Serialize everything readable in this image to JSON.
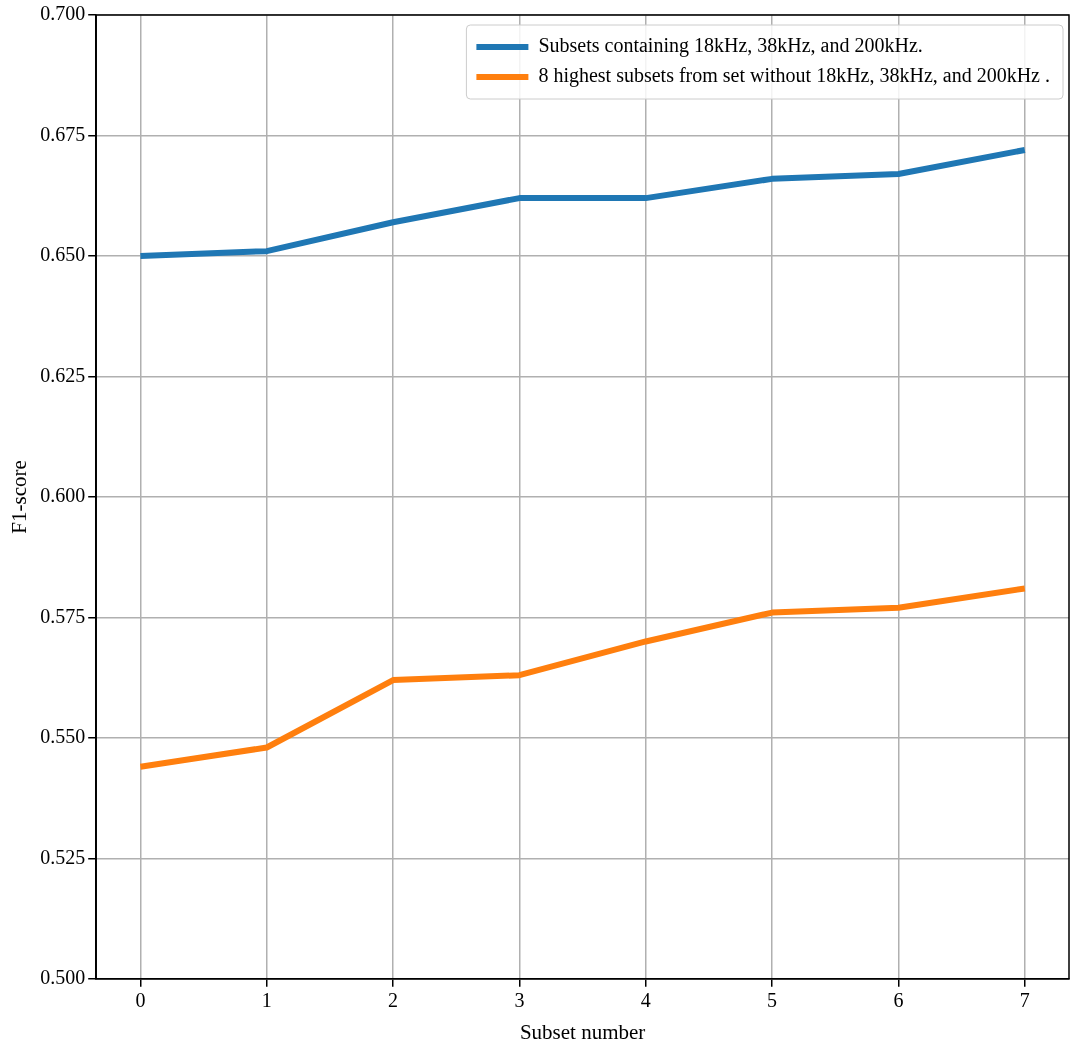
{
  "chart_data": {
    "type": "line",
    "xlabel": "Subset number",
    "ylabel": "F1-score",
    "x": [
      0,
      1,
      2,
      3,
      4,
      5,
      6,
      7
    ],
    "series": [
      {
        "name": "Subsets containing 18kHz, 38kHz, and 200kHz.",
        "color": "#1f77b4",
        "values": [
          0.65,
          0.651,
          0.657,
          0.662,
          0.662,
          0.666,
          0.667,
          0.672
        ]
      },
      {
        "name": "8 highest subsets from set without 18kHz, 38kHz, and 200kHz .",
        "color": "#ff7f0e",
        "values": [
          0.544,
          0.548,
          0.562,
          0.563,
          0.57,
          0.576,
          0.577,
          0.581
        ]
      }
    ],
    "xlim": [
      -0.35,
      7.35
    ],
    "xticks": [
      0,
      1,
      2,
      3,
      4,
      5,
      6,
      7
    ],
    "ylim": [
      0.5,
      0.7
    ],
    "yticks": [
      {
        "value": 0.5,
        "label": "0.500"
      },
      {
        "value": 0.525,
        "label": "0.525"
      },
      {
        "value": 0.55,
        "label": "0.550"
      },
      {
        "value": 0.575,
        "label": "0.575"
      },
      {
        "value": 0.6,
        "label": "0.600"
      },
      {
        "value": 0.625,
        "label": "0.625"
      },
      {
        "value": 0.65,
        "label": "0.650"
      },
      {
        "value": 0.675,
        "label": "0.675"
      },
      {
        "value": 0.7,
        "label": "0.700"
      }
    ],
    "grid": true,
    "legend": "top right",
    "marker": "none",
    "line_style": "solid"
  }
}
